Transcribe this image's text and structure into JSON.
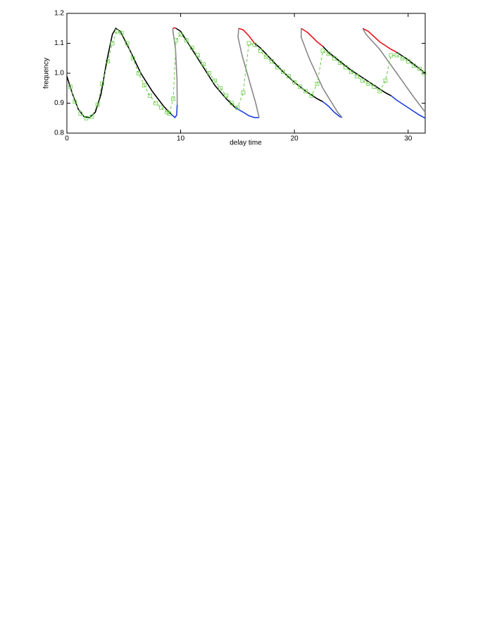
{
  "chart_data": {
    "type": "line",
    "x_label": "delay time",
    "y_label": "frequency",
    "xlim": [
      0,
      31.5
    ],
    "ylim": [
      0.8,
      1.2
    ],
    "xticks": [
      0,
      10,
      20,
      30
    ],
    "yticks": [
      0.8,
      0.9,
      {
        "value": 1,
        "label": "1.0"
      },
      1.1,
      1.2
    ],
    "series": [
      {
        "color": "#000000",
        "x": [
          0,
          0.5,
          1,
          1.5,
          2,
          2.5,
          3,
          3.5,
          4,
          4.3,
          4.7,
          5.5,
          6.5,
          7.5,
          8.5,
          9.2,
          null,
          9.6,
          10,
          11,
          12,
          13,
          14,
          14.8,
          null,
          16.5,
          17,
          18,
          19,
          20,
          21,
          22,
          22.5,
          null,
          22.5,
          23,
          24,
          25,
          26,
          27,
          28,
          28.5,
          null,
          29,
          30,
          31,
          31.5
        ],
        "values": [
          0.99,
          0.93,
          0.88,
          0.855,
          0.852,
          0.87,
          0.93,
          1.04,
          1.13,
          1.15,
          1.14,
          1.08,
          1.0,
          0.94,
          0.89,
          0.862,
          null,
          1.15,
          1.14,
          1.08,
          1.02,
          0.96,
          0.915,
          0.885,
          null,
          1.1,
          1.085,
          1.045,
          1.005,
          0.97,
          0.94,
          0.915,
          0.905,
          null,
          1.09,
          1.07,
          1.04,
          1.01,
          0.985,
          0.96,
          0.935,
          0.925,
          null,
          1.07,
          1.045,
          1.015,
          1.0
        ]
      },
      {
        "color": "#e8141c",
        "x": [
          9.3,
          9.45,
          9.6,
          null,
          15.1,
          15.5,
          16,
          16.5,
          null,
          20.6,
          21.2,
          22,
          22.5,
          null,
          26,
          26.5,
          27.5,
          28.5,
          29
        ],
        "values": [
          1.148,
          1.152,
          1.15,
          null,
          1.15,
          1.145,
          1.125,
          1.1,
          null,
          1.15,
          1.135,
          1.105,
          1.09,
          null,
          1.15,
          1.14,
          1.105,
          1.08,
          1.07
        ]
      },
      {
        "color": "#1f3fe0",
        "x": [
          9.2,
          9.5,
          9.65,
          9.7,
          null,
          14.8,
          15.5,
          16,
          16.5,
          16.9,
          null,
          22.5,
          23,
          23.5,
          24,
          24.2,
          null,
          28.5,
          29,
          30,
          31,
          31.5
        ],
        "values": [
          0.862,
          0.852,
          0.86,
          0.895,
          null,
          0.885,
          0.87,
          0.858,
          0.852,
          0.852,
          null,
          0.905,
          0.89,
          0.87,
          0.855,
          0.852,
          null,
          0.925,
          0.91,
          0.885,
          0.86,
          0.85
        ]
      },
      {
        "color": "#888888",
        "x": [
          9.7,
          9.68,
          9.55,
          9.3,
          null,
          16.9,
          16.6,
          16,
          15.4,
          15.05,
          15.1,
          null,
          24.2,
          23.8,
          22.5,
          21.3,
          20.6,
          20.6,
          null,
          31.5,
          30.5,
          29,
          27.5,
          26.3,
          26
        ],
        "values": [
          0.895,
          0.98,
          1.08,
          1.148,
          null,
          0.852,
          0.9,
          0.98,
          1.06,
          1.12,
          1.15,
          null,
          0.852,
          0.87,
          0.95,
          1.05,
          1.12,
          1.15,
          null,
          0.87,
          0.92,
          1.0,
          1.08,
          1.13,
          1.15
        ]
      },
      {
        "color": "#66cc44",
        "marker": "square",
        "dash": true,
        "x": [
          0.3,
          0.7,
          1.2,
          1.7,
          2.2,
          2.7,
          3.1,
          3.6,
          4.0,
          4.4,
          4.8,
          5.3,
          5.8,
          6.3,
          6.8,
          7.3,
          7.8,
          8.3,
          8.8,
          9.0,
          9.35,
          9.6,
          10.0,
          10.5,
          11.0,
          11.5,
          12.0,
          12.5,
          13.0,
          13.5,
          14.0,
          14.5,
          15.0,
          15.5,
          16.0,
          16.5,
          17.0,
          17.5,
          18.0,
          18.5,
          19.0,
          19.5,
          20.0,
          20.5,
          21.0,
          21.5,
          22.0,
          22.5,
          23.0,
          23.5,
          24.0,
          24.5,
          25.0,
          25.5,
          26.0,
          26.5,
          27.0,
          27.5,
          28.0,
          28.5,
          29.0,
          29.5,
          30.0,
          30.5,
          31.0,
          31.4
        ],
        "values": [
          0.955,
          0.905,
          0.865,
          0.85,
          0.855,
          0.895,
          0.965,
          1.04,
          1.1,
          1.14,
          1.135,
          1.1,
          1.05,
          1.0,
          0.96,
          0.925,
          0.9,
          0.885,
          0.87,
          0.865,
          0.915,
          1.11,
          1.13,
          1.11,
          1.085,
          1.06,
          1.03,
          1.0,
          0.975,
          0.95,
          0.925,
          0.9,
          0.885,
          0.935,
          1.1,
          1.095,
          1.075,
          1.055,
          1.04,
          1.02,
          1.005,
          0.99,
          0.97,
          0.955,
          0.94,
          0.925,
          0.965,
          1.075,
          1.065,
          1.05,
          1.035,
          1.02,
          1.005,
          0.99,
          0.975,
          0.965,
          0.955,
          0.94,
          0.975,
          1.06,
          1.06,
          1.05,
          1.04,
          1.025,
          1.015,
          1.0
        ]
      }
    ]
  }
}
